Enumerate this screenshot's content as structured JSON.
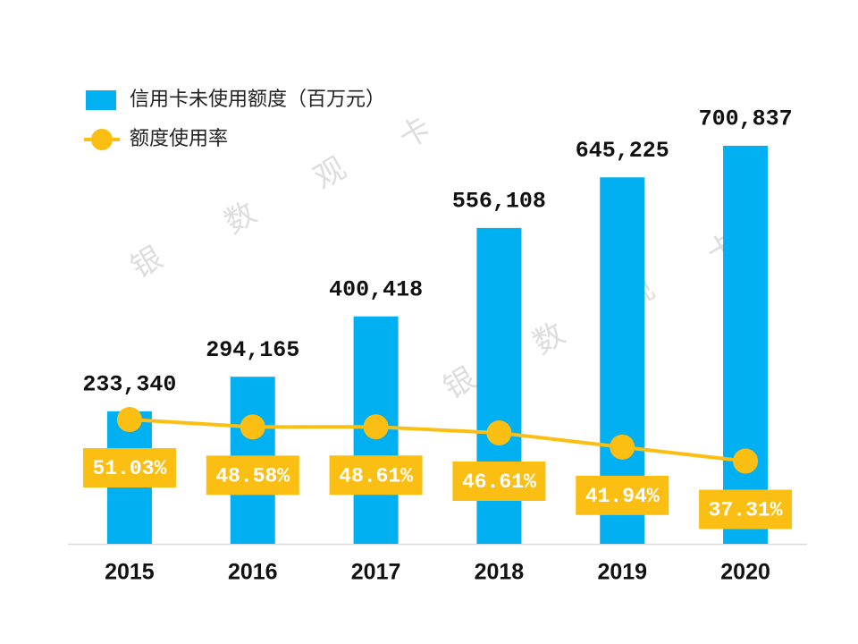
{
  "chart_data": {
    "type": "bar",
    "categories": [
      "2015",
      "2016",
      "2017",
      "2018",
      "2019",
      "2020"
    ],
    "series": [
      {
        "name": "信用卡未使用额度（百万元）",
        "type": "bar",
        "color": "#00b0f0",
        "values": [
          233340,
          294165,
          400418,
          556108,
          645225,
          700837
        ],
        "value_labels": [
          "233,340",
          "294,165",
          "400,418",
          "556,108",
          "645,225",
          "700,837"
        ]
      },
      {
        "name": "额度使用率",
        "type": "line",
        "axis": "y2",
        "color": "#fbbf14",
        "values": [
          51.03,
          48.58,
          48.61,
          46.61,
          41.94,
          37.31
        ],
        "value_labels": [
          "51.03%",
          "48.58%",
          "48.61%",
          "46.61%",
          "41.94%",
          "37.31%"
        ]
      }
    ],
    "ylim": [
      0,
      800000
    ],
    "y2lim": [
      10,
      160
    ],
    "legend": "top-left",
    "watermark": [
      "银",
      "数",
      "观",
      "卡"
    ]
  }
}
